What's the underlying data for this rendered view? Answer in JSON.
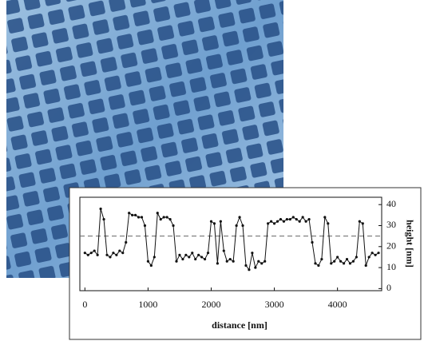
{
  "chart_data": {
    "type": "line",
    "x_label": "distance [nm]",
    "y_label": "height [nm]",
    "x": [
      0,
      50,
      100,
      150,
      200,
      250,
      300,
      350,
      400,
      450,
      500,
      550,
      600,
      650,
      700,
      750,
      800,
      850,
      900,
      950,
      1000,
      1050,
      1100,
      1150,
      1200,
      1250,
      1300,
      1350,
      1400,
      1450,
      1500,
      1550,
      1600,
      1650,
      1700,
      1750,
      1800,
      1850,
      1900,
      1950,
      2000,
      2050,
      2100,
      2150,
      2200,
      2250,
      2300,
      2350,
      2400,
      2450,
      2500,
      2550,
      2600,
      2650,
      2700,
      2750,
      2800,
      2850,
      2900,
      2950,
      3000,
      3050,
      3100,
      3150,
      3200,
      3250,
      3300,
      3350,
      3400,
      3450,
      3500,
      3550,
      3600,
      3650,
      3700,
      3750,
      3800,
      3850,
      3900,
      3950,
      4000,
      4050,
      4100,
      4150,
      4200,
      4250,
      4300,
      4350,
      4400,
      4450,
      4500,
      4550,
      4600,
      4650
    ],
    "series": [
      {
        "color": "#111111",
        "values": [
          17,
          16,
          17,
          18,
          16,
          38,
          33,
          16,
          15,
          17,
          16,
          18,
          17,
          22,
          36,
          35,
          35,
          34,
          34,
          30,
          13,
          11,
          15,
          36,
          33,
          34,
          34,
          33,
          30,
          13,
          16,
          14,
          16,
          15,
          17,
          14,
          16,
          15,
          14,
          17,
          32,
          31,
          12,
          32,
          18,
          13,
          14,
          13,
          30,
          34,
          30,
          11,
          9,
          17,
          10,
          13,
          12,
          13,
          31,
          32,
          31,
          32,
          33,
          32,
          33,
          33,
          34,
          33,
          32,
          34,
          32,
          33,
          22,
          12,
          11,
          14,
          34,
          31,
          12,
          13,
          15,
          13,
          12,
          14,
          12,
          13,
          15,
          32,
          31,
          11,
          15,
          17,
          16,
          17
        ]
      }
    ],
    "reference_line": 25,
    "xlim": [
      -80,
      4700
    ],
    "ylim": [
      -1,
      43.5
    ],
    "xticks": [
      0,
      1000,
      2000,
      3000,
      4000
    ],
    "yticks": [
      0,
      10,
      20,
      30,
      40
    ]
  }
}
